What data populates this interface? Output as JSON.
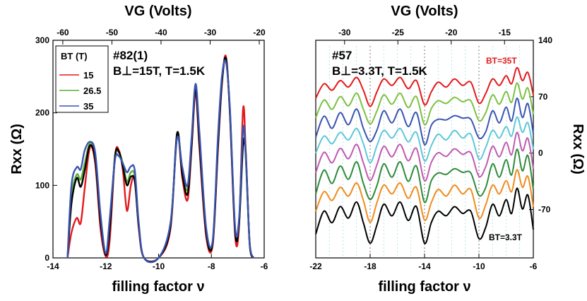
{
  "chart_data": [
    {
      "type": "line",
      "annotation": "#82(1)",
      "annotation2": "B⊥=15T, T=1.5K",
      "xlabel": "filling factor ν",
      "ylabel": "Rxx (Ω)",
      "top_xlabel": "VG (Volts)",
      "xlim": [
        -14,
        -6
      ],
      "ylim": [
        0,
        300
      ],
      "top_xlim": [
        -62,
        -19
      ],
      "x_ticks": [
        "-14",
        "-12",
        "-10",
        "-8",
        "-6"
      ],
      "y_ticks": [
        "0",
        "100",
        "200",
        "300"
      ],
      "top_ticks": [
        "-60",
        "-50",
        "-40",
        "-30",
        "-20"
      ],
      "legend_title": "BT (T)",
      "legend_placement": "top-left",
      "series": [
        {
          "name": "15",
          "color": "#e31a1c",
          "x": [
            -13.45,
            -13.3,
            -13.1,
            -12.95,
            -12.8,
            -12.6,
            -12.4,
            -12.2,
            -12.0,
            -11.85,
            -11.65,
            -11.5,
            -11.35,
            -11.2,
            -11.05,
            -10.9,
            -10.75,
            -10.55,
            -10.0,
            -9.55,
            -9.3,
            -9.1,
            -8.9,
            -8.75,
            -8.6,
            -8.45,
            -8.2,
            -7.95,
            -7.75,
            -7.6,
            -7.45,
            -7.3,
            -7.1,
            -6.95,
            -6.8,
            -6.7,
            -6.55,
            -6.4
          ],
          "y": [
            0,
            35,
            55,
            48,
            95,
            152,
            130,
            40,
            2,
            25,
            140,
            148,
            120,
            65,
            100,
            110,
            40,
            0,
            0,
            40,
            170,
            110,
            80,
            150,
            228,
            150,
            30,
            18,
            150,
            240,
            278,
            200,
            30,
            45,
            205,
            150,
            20,
            0
          ]
        },
        {
          "name": "26.5",
          "color": "#5aae3a",
          "x": [
            -13.45,
            -13.3,
            -13.1,
            -12.95,
            -12.8,
            -12.6,
            -12.4,
            -12.2,
            -12.0,
            -11.85,
            -11.65,
            -11.5,
            -11.35,
            -11.2,
            -11.05,
            -10.9,
            -10.75,
            -10.55,
            -10.0,
            -9.55,
            -9.3,
            -9.1,
            -8.9,
            -8.75,
            -8.6,
            -8.45,
            -8.2,
            -7.95,
            -7.75,
            -7.6,
            -7.45,
            -7.3,
            -7.1,
            -6.95,
            -6.8,
            -6.7,
            -6.55,
            -6.4
          ],
          "y": [
            0,
            85,
            115,
            108,
            130,
            158,
            140,
            55,
            5,
            45,
            138,
            145,
            130,
            105,
            118,
            112,
            45,
            0,
            0,
            45,
            168,
            118,
            95,
            160,
            236,
            165,
            38,
            22,
            160,
            245,
            273,
            205,
            38,
            52,
            178,
            140,
            20,
            0
          ]
        },
        {
          "name": "35",
          "color": "#3a55b0",
          "x": [
            -13.45,
            -13.3,
            -13.1,
            -12.95,
            -12.8,
            -12.6,
            -12.4,
            -12.2,
            -12.0,
            -11.85,
            -11.65,
            -11.5,
            -11.35,
            -11.2,
            -11.05,
            -10.9,
            -10.75,
            -10.55,
            -10.0,
            -9.55,
            -9.3,
            -9.1,
            -8.9,
            -8.75,
            -8.6,
            -8.45,
            -8.2,
            -7.95,
            -7.75,
            -7.6,
            -7.45,
            -7.3,
            -7.1,
            -6.95,
            -6.8,
            -6.7,
            -6.55,
            -6.4
          ],
          "y": [
            0,
            100,
            125,
            122,
            148,
            160,
            145,
            60,
            6,
            55,
            135,
            140,
            130,
            118,
            126,
            120,
            48,
            0,
            0,
            48,
            165,
            125,
            100,
            165,
            240,
            172,
            42,
            24,
            168,
            250,
            270,
            208,
            42,
            55,
            178,
            142,
            22,
            0
          ]
        },
        {
          "name": "",
          "color": "#000000",
          "x": [
            -13.45,
            -13.3,
            -13.1,
            -12.95,
            -12.8,
            -12.6,
            -12.4,
            -12.2,
            -12.0,
            -11.85,
            -11.65,
            -11.5,
            -11.35,
            -11.2,
            -11.05,
            -10.9,
            -10.75,
            -10.55,
            -10.0,
            -9.55,
            -9.3,
            -9.1,
            -8.9,
            -8.75,
            -8.6,
            -8.45,
            -8.2,
            -7.95,
            -7.75,
            -7.6,
            -7.45,
            -7.3,
            -7.1,
            -6.95,
            -6.8,
            -6.7,
            -6.55,
            -6.4
          ],
          "y": [
            0,
            75,
            110,
            98,
            120,
            155,
            135,
            50,
            4,
            40,
            140,
            146,
            125,
            100,
            112,
            105,
            43,
            0,
            0,
            43,
            172,
            115,
            88,
            155,
            232,
            158,
            35,
            20,
            155,
            242,
            275,
            202,
            35,
            48,
            155,
            145,
            20,
            0
          ]
        }
      ]
    },
    {
      "type": "line",
      "annotation": "#57",
      "annotation2": "B⊥=3.3T, T=1.5K",
      "label_top": "BT=35T",
      "label_bottom": "BT=3.3T",
      "xlabel": "filling factor ν",
      "ylabel": "Rxx (Ω)",
      "top_xlabel": "VG (Volts)",
      "xlim": [
        -22,
        -6
      ],
      "ylim": [
        -130,
        140
      ],
      "top_xlim": [
        -32.7,
        -12.3
      ],
      "x_ticks": [
        "-22",
        "-18",
        "-14",
        "-10",
        "-6"
      ],
      "y_ticks": [
        "-70",
        "0",
        "70",
        "140"
      ],
      "top_ticks": [
        "-30",
        "-25",
        "-20",
        "-15"
      ],
      "dashed_lines_x": [
        -18,
        -14,
        -10
      ],
      "series": [
        {
          "name": "",
          "color": "#e31a1c",
          "offset": 80
        },
        {
          "name": "",
          "color": "#7cc142",
          "offset": 58
        },
        {
          "name": "",
          "color": "#3a55b0",
          "offset": 36
        },
        {
          "name": "",
          "color": "#5fc8d8",
          "offset": 14
        },
        {
          "name": "",
          "color": "#c05ab0",
          "offset": -8
        },
        {
          "name": "",
          "color": "#2e8b3a",
          "offset": -32
        },
        {
          "name": "",
          "color": "#f08c1e",
          "offset": -56
        },
        {
          "name": "",
          "color": "#000000",
          "offset": -82
        }
      ],
      "base_curve": {
        "x": [
          -22,
          -21.4,
          -20.8,
          -20.2,
          -19.6,
          -19,
          -18.5,
          -18,
          -17.5,
          -17,
          -16.4,
          -15.8,
          -15.2,
          -14.6,
          -14,
          -13.5,
          -13,
          -12.4,
          -11.8,
          -11.2,
          -10.6,
          -10,
          -9.5,
          -9,
          -8.5,
          -8,
          -7.6,
          -7.2,
          -6.8,
          -6.4,
          -6
        ],
        "y": [
          -12,
          6,
          -2,
          10,
          2,
          14,
          -2,
          -22,
          -4,
          12,
          4,
          14,
          0,
          10,
          -20,
          -4,
          8,
          2,
          12,
          4,
          8,
          -18,
          -6,
          12,
          4,
          16,
          6,
          26,
          10,
          20,
          -8
        ]
      }
    }
  ]
}
